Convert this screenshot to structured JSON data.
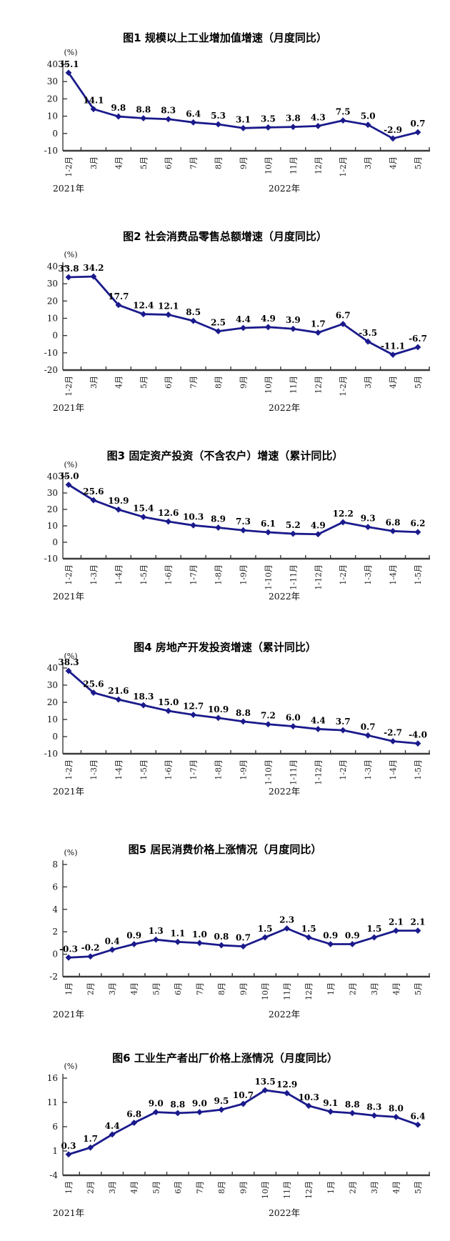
{
  "page": {
    "background": "#ffffff",
    "axis_color": "#3a3a3a",
    "label_color": "#000000"
  },
  "chart_data": [
    {
      "type": "line",
      "title": "图1  规模以上工业增加值增速（月度同比）",
      "unit_label": "(%)",
      "series_color": "#1a1a8c",
      "categories": [
        "1-2月",
        "3月",
        "4月",
        "5月",
        "6月",
        "7月",
        "8月",
        "9月",
        "10月",
        "11月",
        "12月",
        "1-2月",
        "3月",
        "4月",
        "5月"
      ],
      "values": [
        35.1,
        14.1,
        9.8,
        8.8,
        8.3,
        6.4,
        5.3,
        3.1,
        3.5,
        3.8,
        4.3,
        7.5,
        5.0,
        -2.9,
        0.7
      ],
      "yticks": [
        40,
        30,
        20,
        10,
        0,
        -10
      ],
      "ylim": [
        -10,
        40
      ],
      "grid": false,
      "year_labels": [
        "2021年",
        "2022年"
      ]
    },
    {
      "type": "line",
      "title": "图2  社会消费品零售总额增速（月度同比）",
      "unit_label": "(%)",
      "series_color": "#1a1a8c",
      "categories": [
        "1-2月",
        "3月",
        "4月",
        "5月",
        "6月",
        "7月",
        "8月",
        "9月",
        "10月",
        "11月",
        "12月",
        "1-2月",
        "3月",
        "4月",
        "5月"
      ],
      "values": [
        33.8,
        34.2,
        17.7,
        12.4,
        12.1,
        8.5,
        2.5,
        4.4,
        4.9,
        3.9,
        1.7,
        6.7,
        -3.5,
        -11.1,
        -6.7
      ],
      "yticks": [
        40,
        30,
        20,
        10,
        0,
        -10,
        -20
      ],
      "ylim": [
        -20,
        40
      ],
      "grid": false,
      "year_labels": [
        "2021年",
        "2022年"
      ]
    },
    {
      "type": "line",
      "title": "图3  固定资产投资（不含农户）增速（累计同比）",
      "unit_label": "(%)",
      "series_color": "#1a1a8c",
      "categories": [
        "1-2月",
        "1-3月",
        "1-4月",
        "1-5月",
        "1-6月",
        "1-7月",
        "1-8月",
        "1-9月",
        "1-10月",
        "1-11月",
        "1-12月",
        "1-2月",
        "1-3月",
        "1-4月",
        "1-5月"
      ],
      "values": [
        35.0,
        25.6,
        19.9,
        15.4,
        12.6,
        10.3,
        8.9,
        7.3,
        6.1,
        5.2,
        4.9,
        12.2,
        9.3,
        6.8,
        6.2
      ],
      "yticks": [
        40,
        30,
        20,
        10,
        0,
        -10
      ],
      "ylim": [
        -10,
        40
      ],
      "grid": false,
      "year_labels": [
        "2021年",
        "2022年"
      ]
    },
    {
      "type": "line",
      "title": "图4  房地产开发投资增速（累计同比）",
      "unit_label": "(%)",
      "series_color": "#1a1a8c",
      "categories": [
        "1-2月",
        "1-3月",
        "1-4月",
        "1-5月",
        "1-6月",
        "1-7月",
        "1-8月",
        "1-9月",
        "1-10月",
        "1-11月",
        "1-12月",
        "1-2月",
        "1-3月",
        "1-4月",
        "1-5月"
      ],
      "values": [
        38.3,
        25.6,
        21.6,
        18.3,
        15.0,
        12.7,
        10.9,
        8.8,
        7.2,
        6.0,
        4.4,
        3.7,
        0.7,
        -2.7,
        -4.0
      ],
      "yticks": [
        40,
        30,
        20,
        10,
        0,
        -10
      ],
      "ylim": [
        -10,
        40
      ],
      "grid": false,
      "year_labels": [
        "2021年",
        "2022年"
      ]
    },
    {
      "type": "line",
      "title": "图5  居民消费价格上涨情况（月度同比）",
      "unit_label": "(%)",
      "series_color": "#1a1a8c",
      "categories": [
        "1月",
        "2月",
        "3月",
        "4月",
        "5月",
        "6月",
        "7月",
        "8月",
        "9月",
        "10月",
        "11月",
        "12月",
        "1月",
        "2月",
        "3月",
        "4月",
        "5月"
      ],
      "values": [
        -0.3,
        -0.2,
        0.4,
        0.9,
        1.3,
        1.1,
        1.0,
        0.8,
        0.7,
        1.5,
        2.3,
        1.5,
        0.9,
        0.9,
        1.5,
        2.1,
        2.1
      ],
      "yticks": [
        8,
        6,
        4,
        2,
        0,
        -2
      ],
      "ylim": [
        -2,
        8
      ],
      "grid": false,
      "year_labels": [
        "2021年",
        "2022年"
      ]
    },
    {
      "type": "line",
      "title": "图6  工业生产者出厂价格上涨情况（月度同比）",
      "unit_label": "(%)",
      "series_color": "#1a1a8c",
      "categories": [
        "1月",
        "2月",
        "3月",
        "4月",
        "5月",
        "6月",
        "7月",
        "8月",
        "9月",
        "10月",
        "11月",
        "12月",
        "1月",
        "2月",
        "3月",
        "4月",
        "5月"
      ],
      "values": [
        0.3,
        1.7,
        4.4,
        6.8,
        9.0,
        8.8,
        9.0,
        9.5,
        10.7,
        13.5,
        12.9,
        10.3,
        9.1,
        8.8,
        8.3,
        8.0,
        6.4
      ],
      "yticks": [
        16,
        11,
        6,
        1,
        -4
      ],
      "ylim": [
        -4,
        16
      ],
      "grid": false,
      "year_labels": [
        "2021年",
        "2022年"
      ]
    }
  ]
}
